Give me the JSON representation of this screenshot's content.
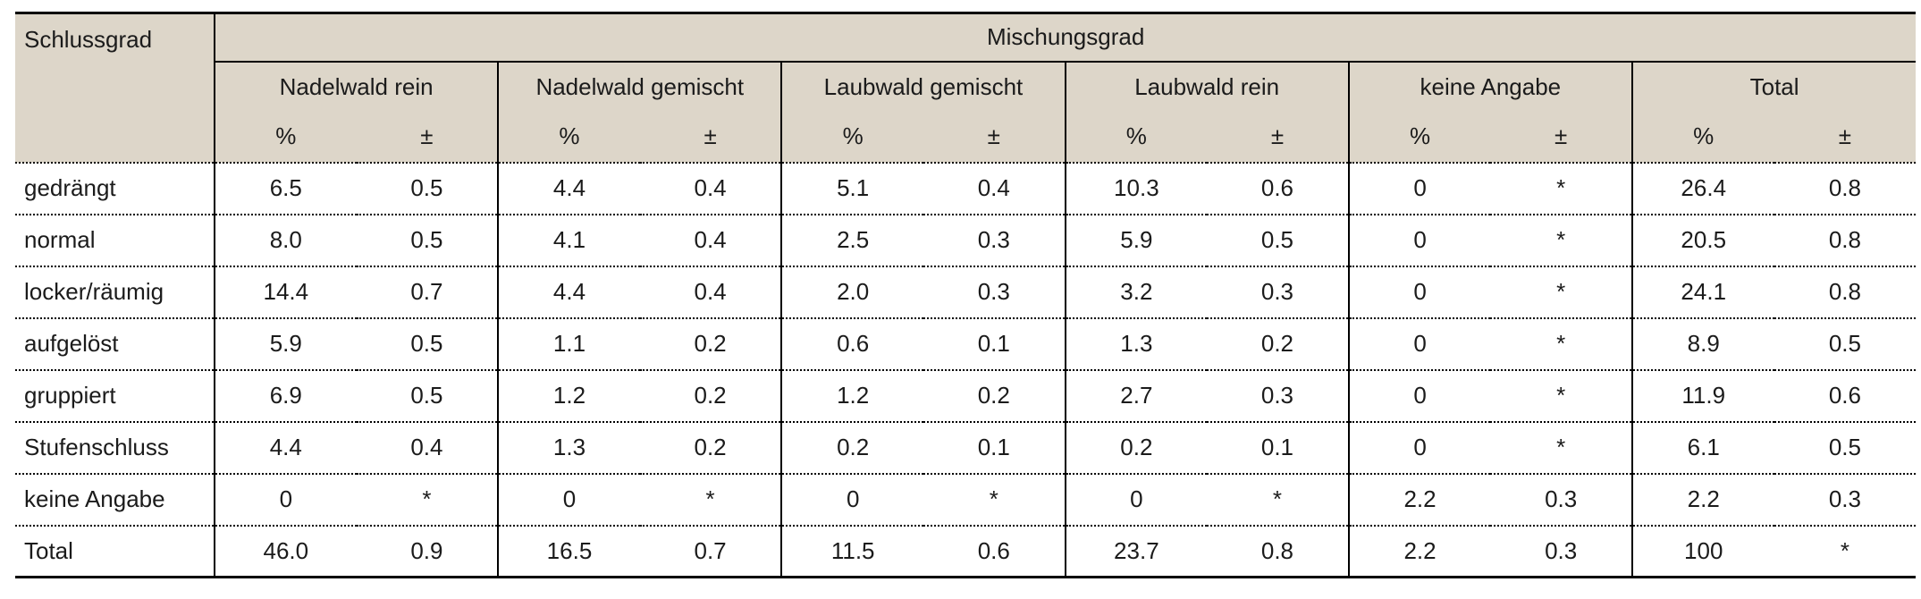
{
  "table": {
    "corner_header": "Schlussgrad",
    "top_header": "Mischungsgrad",
    "groups": [
      {
        "label": "Nadelwald rein"
      },
      {
        "label": "Nadelwald gemischt"
      },
      {
        "label": "Laubwald gemischt"
      },
      {
        "label": "Laubwald rein"
      },
      {
        "label": "keine Angabe"
      },
      {
        "label": "Total"
      }
    ],
    "sub_headers": {
      "percent": "%",
      "pm": "±"
    },
    "rows": [
      {
        "label": "gedrängt",
        "values": [
          "6.5",
          "0.5",
          "4.4",
          "0.4",
          "5.1",
          "0.4",
          "10.3",
          "0.6",
          "0",
          "*",
          "26.4",
          "0.8"
        ]
      },
      {
        "label": "normal",
        "values": [
          "8.0",
          "0.5",
          "4.1",
          "0.4",
          "2.5",
          "0.3",
          "5.9",
          "0.5",
          "0",
          "*",
          "20.5",
          "0.8"
        ]
      },
      {
        "label": "locker/räumig",
        "values": [
          "14.4",
          "0.7",
          "4.4",
          "0.4",
          "2.0",
          "0.3",
          "3.2",
          "0.3",
          "0",
          "*",
          "24.1",
          "0.8"
        ]
      },
      {
        "label": "aufgelöst",
        "values": [
          "5.9",
          "0.5",
          "1.1",
          "0.2",
          "0.6",
          "0.1",
          "1.3",
          "0.2",
          "0",
          "*",
          "8.9",
          "0.5"
        ]
      },
      {
        "label": "gruppiert",
        "values": [
          "6.9",
          "0.5",
          "1.2",
          "0.2",
          "1.2",
          "0.2",
          "2.7",
          "0.3",
          "0",
          "*",
          "11.9",
          "0.6"
        ]
      },
      {
        "label": "Stufenschluss",
        "values": [
          "4.4",
          "0.4",
          "1.3",
          "0.2",
          "0.2",
          "0.1",
          "0.2",
          "0.1",
          "0",
          "*",
          "6.1",
          "0.5"
        ]
      },
      {
        "label": "keine Angabe",
        "values": [
          "0",
          "*",
          "0",
          "*",
          "0",
          "*",
          "0",
          "*",
          "2.2",
          "0.3",
          "2.2",
          "0.3"
        ]
      },
      {
        "label": "Total",
        "values": [
          "46.0",
          "0.9",
          "16.5",
          "0.7",
          "11.5",
          "0.6",
          "23.7",
          "0.8",
          "2.2",
          "0.3",
          "100",
          "*"
        ]
      }
    ]
  },
  "colors": {
    "header_background": "#ddd6c9",
    "border": "#000000",
    "text": "#1b1b1b",
    "page_background": "#ffffff"
  }
}
